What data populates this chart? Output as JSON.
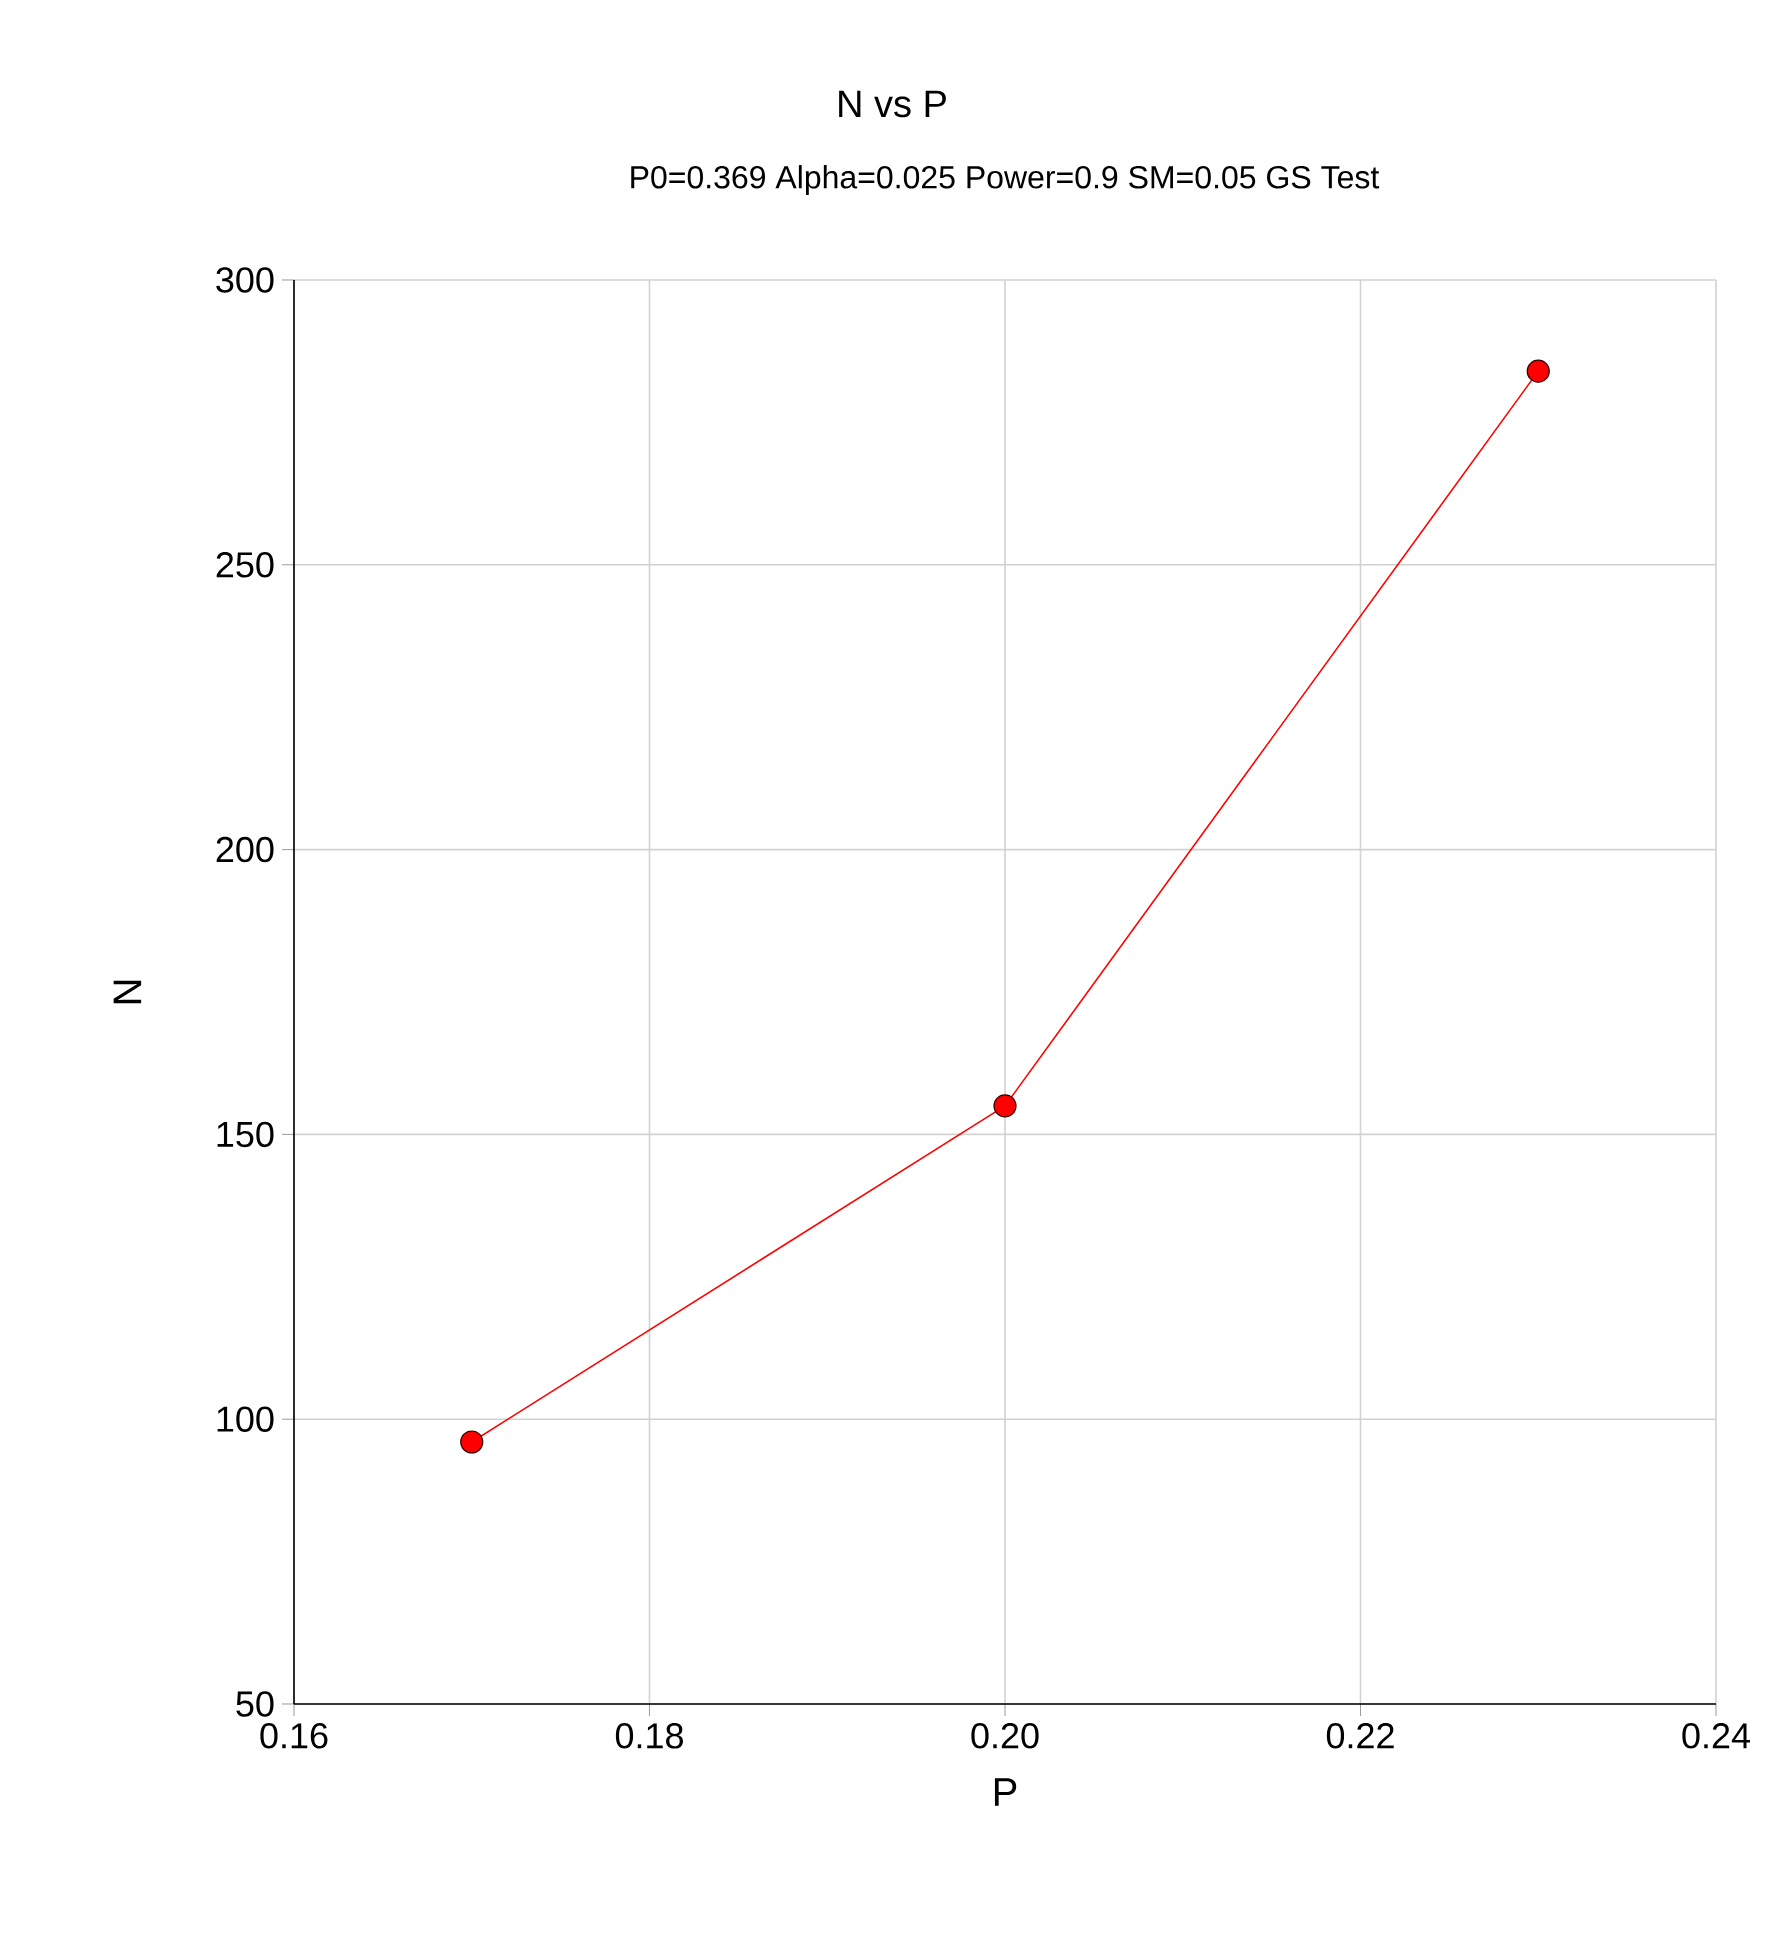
{
  "chart_data": {
    "type": "line",
    "title": "N vs P",
    "subtitle": "P0=0.369 Alpha=0.025 Power=0.9 SM=0.05 GS Test",
    "xlabel": "P",
    "ylabel": "N",
    "x": [
      0.17,
      0.2,
      0.23
    ],
    "series": [
      {
        "color": "#ff0000",
        "values": [
          96,
          155,
          284
        ]
      }
    ],
    "xlim": [
      0.16,
      0.24
    ],
    "xticks": [
      0.16,
      0.18,
      {
        "value": 0.2,
        "label": "0.20"
      },
      0.22,
      0.24
    ],
    "ylim": [
      50,
      300
    ],
    "yticks": [
      50,
      100,
      150,
      200,
      250,
      300
    ],
    "grid": true,
    "marker": "circle",
    "line_style": "solid"
  }
}
